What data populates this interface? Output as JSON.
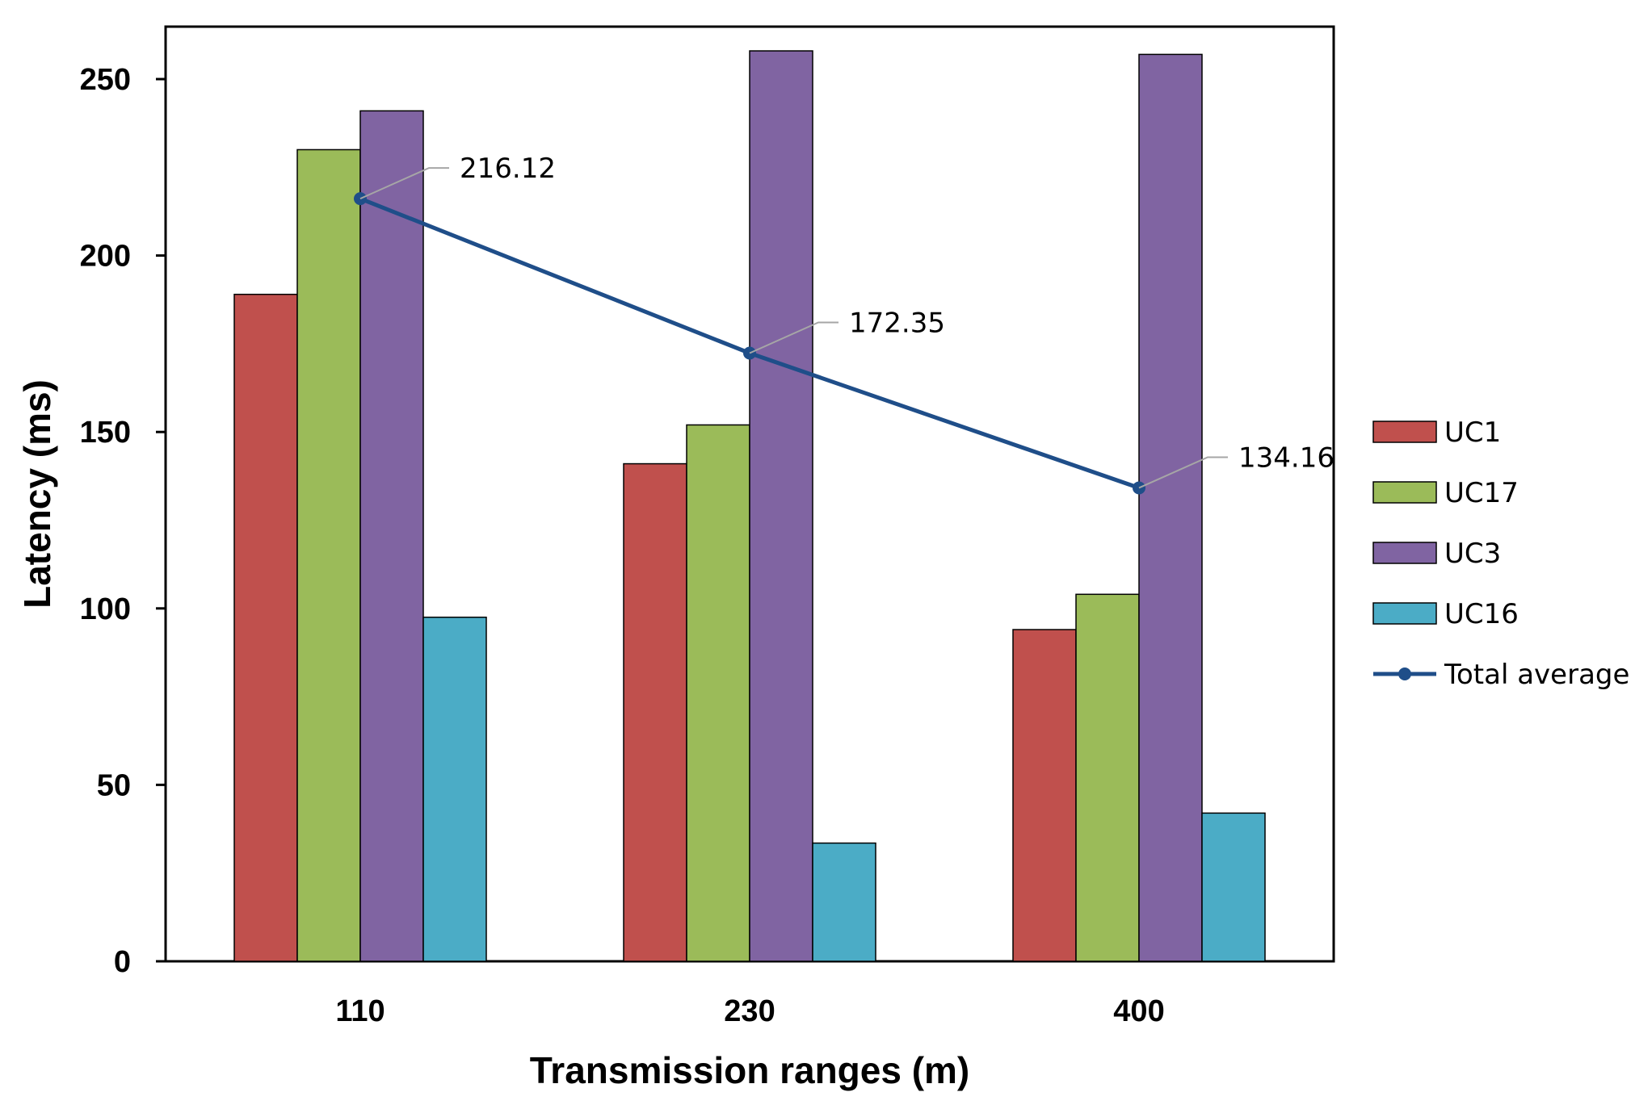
{
  "chart_data": {
    "type": "bar",
    "title": "",
    "xlabel": "Transmission ranges (m)",
    "ylabel": "Latency (ms)",
    "categories": [
      "110",
      "230",
      "400"
    ],
    "ylim": [
      0,
      265
    ],
    "yticks": [
      0,
      50,
      100,
      150,
      200,
      250
    ],
    "ytick_labels": [
      "0",
      "50",
      "100",
      "150",
      "200",
      "250"
    ],
    "grid": false,
    "legend_position": "right",
    "series": [
      {
        "name": "UC1",
        "color": "#C0504D",
        "values": [
          189,
          141,
          94
        ]
      },
      {
        "name": "UC17",
        "color": "#9BBB59",
        "values": [
          230,
          152,
          104
        ]
      },
      {
        "name": "UC3",
        "color": "#8064A2",
        "values": [
          241,
          258,
          257
        ]
      },
      {
        "name": "UC16",
        "color": "#4BACC6",
        "values": [
          97.5,
          33.5,
          42
        ]
      }
    ],
    "line_series": {
      "name": "Total average",
      "color": "#1F4E89",
      "values": [
        216.12,
        172.35,
        134.16
      ],
      "labels": [
        "216.12",
        "172.35",
        "134.16"
      ],
      "anchor_series": "UC3"
    }
  }
}
